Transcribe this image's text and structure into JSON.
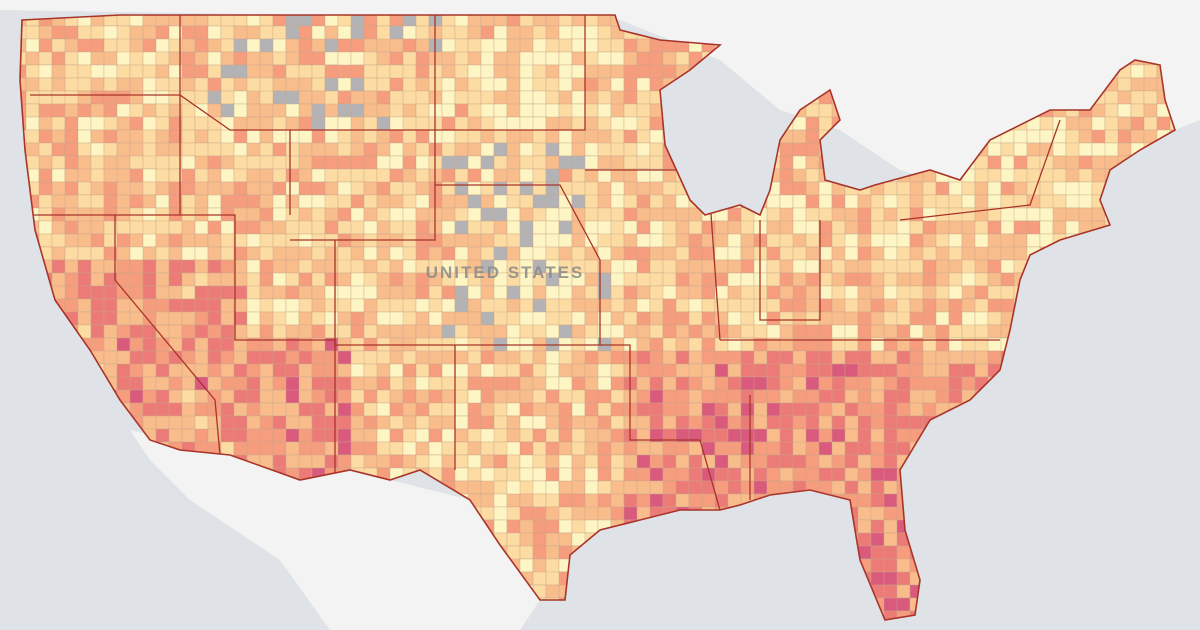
{
  "map": {
    "label": "UNITED STATES"
  }
}
